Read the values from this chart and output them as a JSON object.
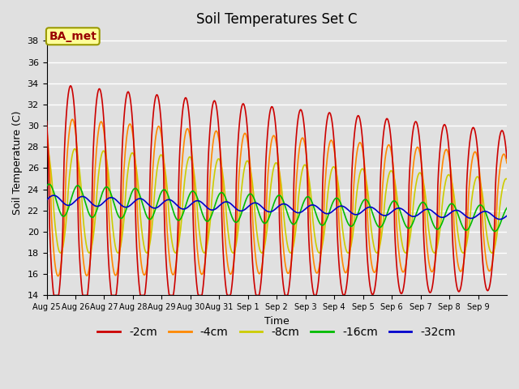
{
  "title": "Soil Temperatures Set C",
  "xlabel": "Time",
  "ylabel": "Soil Temperature (C)",
  "annotation": "BA_met",
  "ylim": [
    14,
    39
  ],
  "yticks": [
    14,
    16,
    18,
    20,
    22,
    24,
    26,
    28,
    30,
    32,
    34,
    36,
    38
  ],
  "xtick_labels": [
    "Aug 25",
    "Aug 26",
    "Aug 27",
    "Aug 28",
    "Aug 29",
    "Aug 30",
    "Aug 31",
    "Sep 1",
    "Sep 2",
    "Sep 3",
    "Sep 4",
    "Sep 5",
    "Sep 6",
    "Sep 7",
    "Sep 8",
    "Sep 9"
  ],
  "series_colors": [
    "#cc0000",
    "#ff8800",
    "#cccc00",
    "#00bb00",
    "#0000cc"
  ],
  "series_labels": [
    "-2cm",
    "-4cm",
    "-8cm",
    "-16cm",
    "-32cm"
  ],
  "background_color": "#e0e0e0",
  "plot_bg_color": "#e0e0e0",
  "grid_color": "#ffffff",
  "title_fontsize": 12,
  "axis_fontsize": 9,
  "legend_fontsize": 10,
  "figsize": [
    6.4,
    4.8
  ],
  "dpi": 100
}
